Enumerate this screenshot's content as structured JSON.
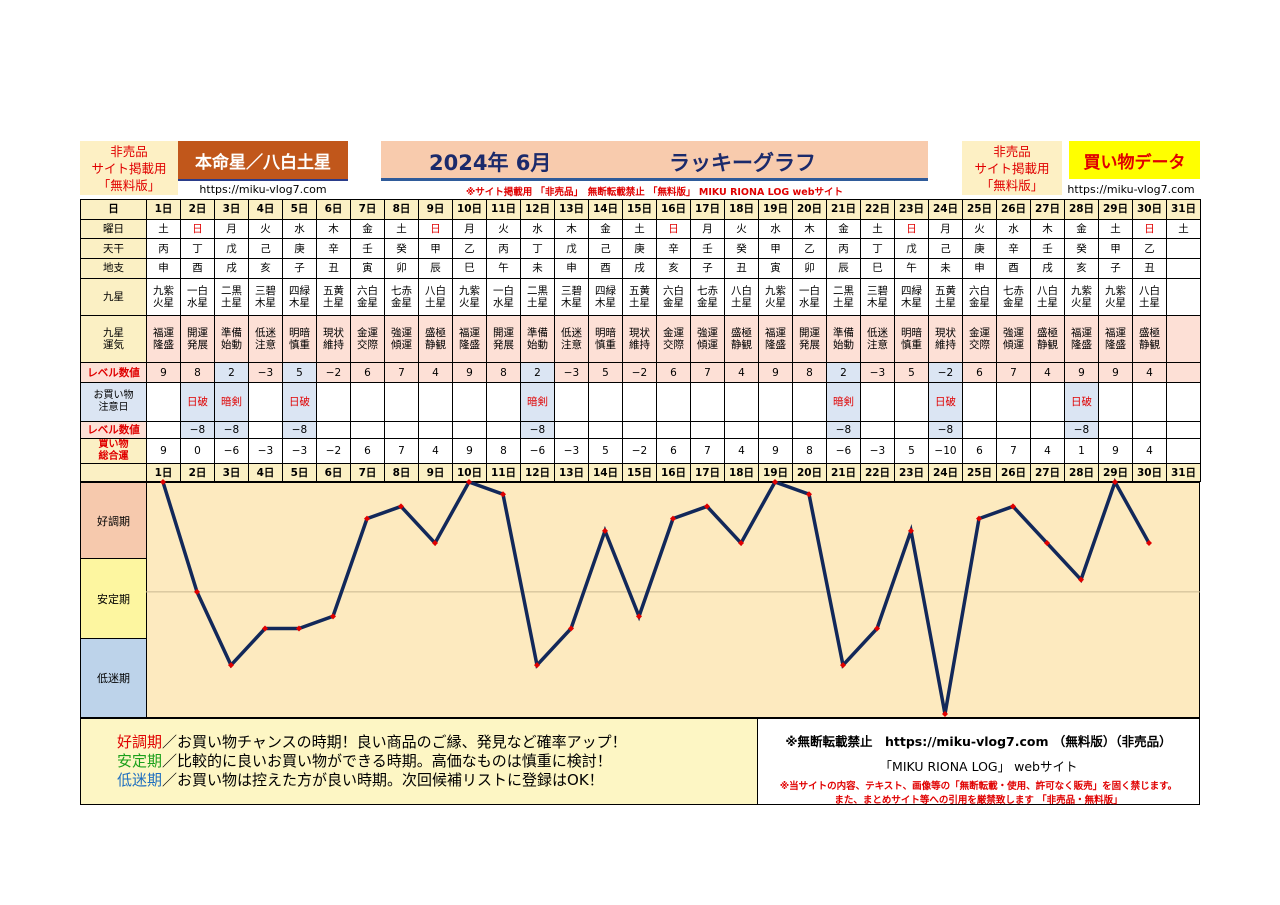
{
  "header": {
    "note_left": [
      "非売品",
      "サイト掲載用",
      "「無料版」"
    ],
    "honmei": "本命星／八白土星",
    "url_left": "https://miku-vlog7.com",
    "year_month": "2024年 6月",
    "graph_title": "ラッキーグラフ",
    "subtitle": "※サイト掲載用 「非売品」　無断転載禁止 「無料版」 MIKU RIONA LOG webサイト",
    "note_right": [
      "非売品",
      "サイト掲載用",
      "「無料版」"
    ],
    "kaimono": "買い物データ",
    "url_right": "https://miku-vlog7.com"
  },
  "labels": {
    "day": "日",
    "weekday": "曜日",
    "tenkan": "天干",
    "chishi": "地支",
    "kyusei": "九星",
    "kyusei_unki": [
      "九星",
      "運気"
    ],
    "level": "レベル数値",
    "caution": [
      "お買い物",
      "注意日"
    ],
    "level2": "レベル数値",
    "total": [
      "買い物",
      "総合運"
    ]
  },
  "days": [
    "1日",
    "2日",
    "3日",
    "4日",
    "5日",
    "6日",
    "7日",
    "8日",
    "9日",
    "10日",
    "11日",
    "12日",
    "13日",
    "14日",
    "15日",
    "16日",
    "17日",
    "18日",
    "19日",
    "20日",
    "21日",
    "22日",
    "23日",
    "24日",
    "25日",
    "26日",
    "27日",
    "28日",
    "29日",
    "30日",
    "31日"
  ],
  "weekdays": [
    "土",
    "日",
    "月",
    "火",
    "水",
    "木",
    "金",
    "土",
    "日",
    "月",
    "火",
    "水",
    "木",
    "金",
    "土",
    "日",
    "月",
    "火",
    "水",
    "木",
    "金",
    "土",
    "日",
    "月",
    "火",
    "水",
    "木",
    "金",
    "土",
    "日",
    "土"
  ],
  "tenkan": [
    "丙",
    "丁",
    "戊",
    "己",
    "庚",
    "辛",
    "壬",
    "癸",
    "甲",
    "乙",
    "丙",
    "丁",
    "戊",
    "己",
    "庚",
    "辛",
    "壬",
    "癸",
    "甲",
    "乙",
    "丙",
    "丁",
    "戊",
    "己",
    "庚",
    "辛",
    "壬",
    "癸",
    "甲",
    "乙",
    ""
  ],
  "chishi": [
    "申",
    "酉",
    "戌",
    "亥",
    "子",
    "丑",
    "寅",
    "卯",
    "辰",
    "巳",
    "午",
    "未",
    "申",
    "酉",
    "戌",
    "亥",
    "子",
    "丑",
    "寅",
    "卯",
    "辰",
    "巳",
    "午",
    "未",
    "申",
    "酉",
    "戌",
    "亥",
    "子",
    "丑",
    ""
  ],
  "kyusei": [
    [
      "九紫",
      "火星"
    ],
    [
      "一白",
      "水星"
    ],
    [
      "二黒",
      "土星"
    ],
    [
      "三碧",
      "木星"
    ],
    [
      "四緑",
      "木星"
    ],
    [
      "五黄",
      "土星"
    ],
    [
      "六白",
      "金星"
    ],
    [
      "七赤",
      "金星"
    ],
    [
      "八白",
      "土星"
    ],
    [
      "九紫",
      "火星"
    ],
    [
      "一白",
      "水星"
    ],
    [
      "二黒",
      "土星"
    ],
    [
      "三碧",
      "木星"
    ],
    [
      "四緑",
      "木星"
    ],
    [
      "五黄",
      "土星"
    ],
    [
      "六白",
      "金星"
    ],
    [
      "七赤",
      "金星"
    ],
    [
      "八白",
      "土星"
    ],
    [
      "九紫",
      "火星"
    ],
    [
      "一白",
      "水星"
    ],
    [
      "二黒",
      "土星"
    ],
    [
      "三碧",
      "木星"
    ],
    [
      "四緑",
      "木星"
    ],
    [
      "五黄",
      "土星"
    ],
    [
      "六白",
      "金星"
    ],
    [
      "七赤",
      "金星"
    ],
    [
      "八白",
      "土星"
    ],
    [
      "九紫",
      "火星"
    ],
    [
      "九紫",
      "火星"
    ],
    [
      "八白",
      "土星"
    ],
    [
      "",
      ""
    ]
  ],
  "unki": [
    [
      "福運",
      "隆盛"
    ],
    [
      "開運",
      "発展"
    ],
    [
      "準備",
      "始動"
    ],
    [
      "低迷",
      "注意"
    ],
    [
      "明暗",
      "慎重"
    ],
    [
      "現状",
      "維持"
    ],
    [
      "金運",
      "交際"
    ],
    [
      "強運",
      "傾運"
    ],
    [
      "盛極",
      "静観"
    ],
    [
      "福運",
      "隆盛"
    ],
    [
      "開運",
      "発展"
    ],
    [
      "準備",
      "始動"
    ],
    [
      "低迷",
      "注意"
    ],
    [
      "明暗",
      "慎重"
    ],
    [
      "現状",
      "維持"
    ],
    [
      "金運",
      "交際"
    ],
    [
      "強運",
      "傾運"
    ],
    [
      "盛極",
      "静観"
    ],
    [
      "福運",
      "隆盛"
    ],
    [
      "開運",
      "発展"
    ],
    [
      "準備",
      "始動"
    ],
    [
      "低迷",
      "注意"
    ],
    [
      "明暗",
      "慎重"
    ],
    [
      "現状",
      "維持"
    ],
    [
      "金運",
      "交際"
    ],
    [
      "強運",
      "傾運"
    ],
    [
      "盛極",
      "静観"
    ],
    [
      "福運",
      "隆盛"
    ],
    [
      "福運",
      "隆盛"
    ],
    [
      "盛極",
      "静観"
    ],
    [
      "",
      ""
    ]
  ],
  "level": [
    "9",
    "8",
    "2",
    "−3",
    "5",
    "−2",
    "6",
    "7",
    "4",
    "9",
    "8",
    "2",
    "−3",
    "5",
    "−2",
    "6",
    "7",
    "4",
    "9",
    "8",
    "2",
    "−3",
    "5",
    "−2",
    "6",
    "7",
    "4",
    "9",
    "9",
    "4",
    ""
  ],
  "caution": [
    "",
    "日破",
    "暗剣",
    "",
    "日破",
    "",
    "",
    "",
    "",
    "",
    "",
    "暗剣",
    "",
    "",
    "",
    "",
    "",
    "",
    "",
    "",
    "暗剣",
    "",
    "",
    "日破",
    "",
    "",
    "",
    "日破",
    "",
    "",
    ""
  ],
  "level2": [
    "",
    "−8",
    "−8",
    "",
    "−8",
    "",
    "",
    "",
    "",
    "",
    "",
    "−8",
    "",
    "",
    "",
    "",
    "",
    "",
    "",
    "",
    "−8",
    "",
    "",
    "−8",
    "",
    "",
    "",
    "−8",
    "",
    "",
    ""
  ],
  "total": [
    "9",
    "0",
    "−6",
    "−3",
    "−3",
    "−2",
    "6",
    "7",
    "4",
    "9",
    "8",
    "−6",
    "−3",
    "5",
    "−2",
    "6",
    "7",
    "4",
    "9",
    "8",
    "−6",
    "−3",
    "5",
    "−10",
    "6",
    "7",
    "4",
    "1",
    "9",
    "4",
    ""
  ],
  "zones": {
    "good": "好調期",
    "stable": "安定期",
    "low": "低迷期"
  },
  "legend": [
    {
      "term": "好調期",
      "text": "／お買い物チャンスの時期！良い商品のご縁、発見など確率アップ！",
      "color": "#e00000"
    },
    {
      "term": "安定期",
      "text": "／比較的に良いお買い物ができる時期。高価なものは慎重に検討！",
      "color": "#1aa01a"
    },
    {
      "term": "低迷期",
      "text": "／お買い物は控えた方が良い時期。次回候補リストに登録はOK！",
      "color": "#1f6fc0"
    }
  ],
  "notice": {
    "line1": "※無断転載禁止　https://miku-vlog7.com （無料版）（非売品）",
    "line2": "「MIKU RIONA LOG」 webサイト",
    "line3": "※当サイトの内容、テキスト、画像等の「無断転載・使用、許可なく販売」を固く禁じます。",
    "line4": "また、まとめサイト等への引用を厳禁致します 「非売品・無料版」"
  },
  "chart_data": {
    "type": "line",
    "x": [
      1,
      2,
      3,
      4,
      5,
      6,
      7,
      8,
      9,
      10,
      11,
      12,
      13,
      14,
      15,
      16,
      17,
      18,
      19,
      20,
      21,
      22,
      23,
      24,
      25,
      26,
      27,
      28,
      29,
      30
    ],
    "series": [
      {
        "values": [
          9,
          0,
          -6,
          -3,
          -3,
          -2,
          6,
          7,
          4,
          9,
          8,
          -6,
          -3,
          5,
          -2,
          6,
          7,
          4,
          9,
          8,
          -6,
          -3,
          5,
          -10,
          6,
          7,
          4,
          1,
          9,
          4
        ]
      }
    ],
    "ylim": [
      -10,
      9
    ],
    "line_color": "#12285a",
    "marker_color": "#e00000"
  }
}
